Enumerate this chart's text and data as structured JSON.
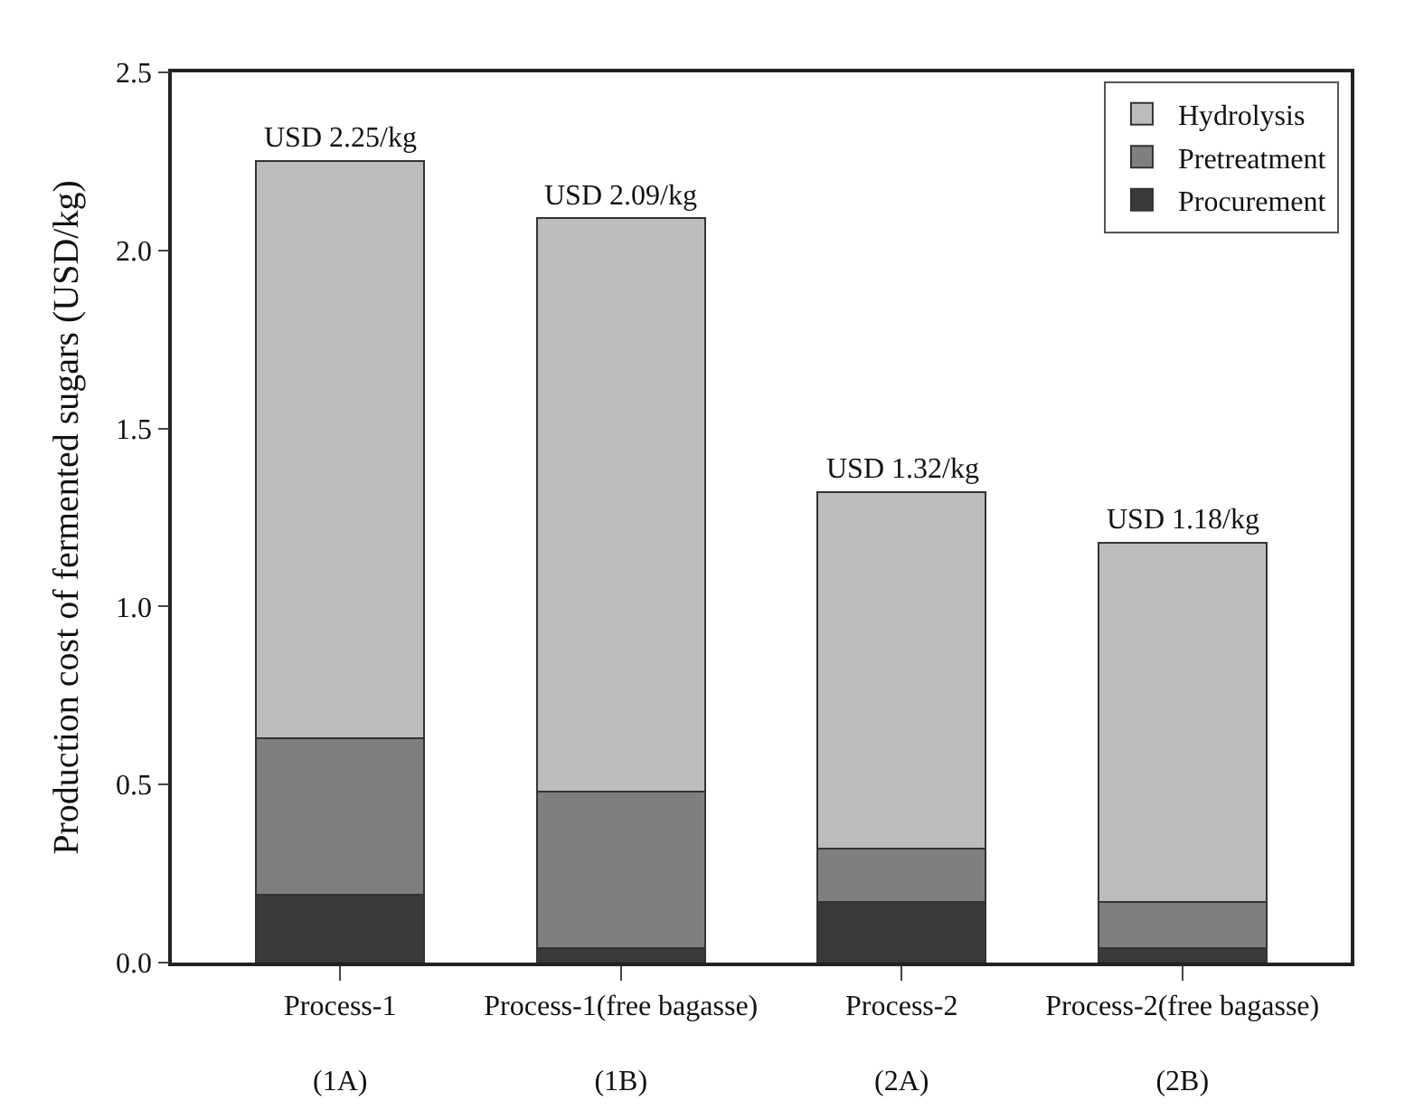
{
  "chart_data": {
    "type": "bar",
    "stacked": true,
    "ylabel": "Production cost of fermented sugars (USD/kg)",
    "categories": [
      "Process-1\n(1A)",
      "Process-1(free bagasse)\n(1B)",
      "Process-2\n(2A)",
      "Process-2(free bagasse)\n(2B)"
    ],
    "series": [
      {
        "name": "Procurement",
        "color": "#3a3a3a",
        "values": [
          0.19,
          0.04,
          0.17,
          0.04
        ]
      },
      {
        "name": "Pretreatment",
        "color": "#7f7f7f",
        "values": [
          0.44,
          0.44,
          0.15,
          0.13
        ]
      },
      {
        "name": "Hydrolysis",
        "color": "#bdbdbd",
        "values": [
          1.62,
          1.61,
          1.0,
          1.01
        ]
      }
    ],
    "totals": [
      "USD 2.25/kg",
      "USD 2.09/kg",
      "USD 1.32/kg",
      "USD 1.18/kg"
    ],
    "ylim": [
      0,
      2.5
    ],
    "yticks": [
      {
        "value": 0,
        "label": "0.0"
      },
      0.5,
      {
        "value": 1,
        "label": "1.0"
      },
      1.5,
      {
        "value": 2,
        "label": "2.0"
      },
      2.5
    ],
    "legend": "top right"
  }
}
